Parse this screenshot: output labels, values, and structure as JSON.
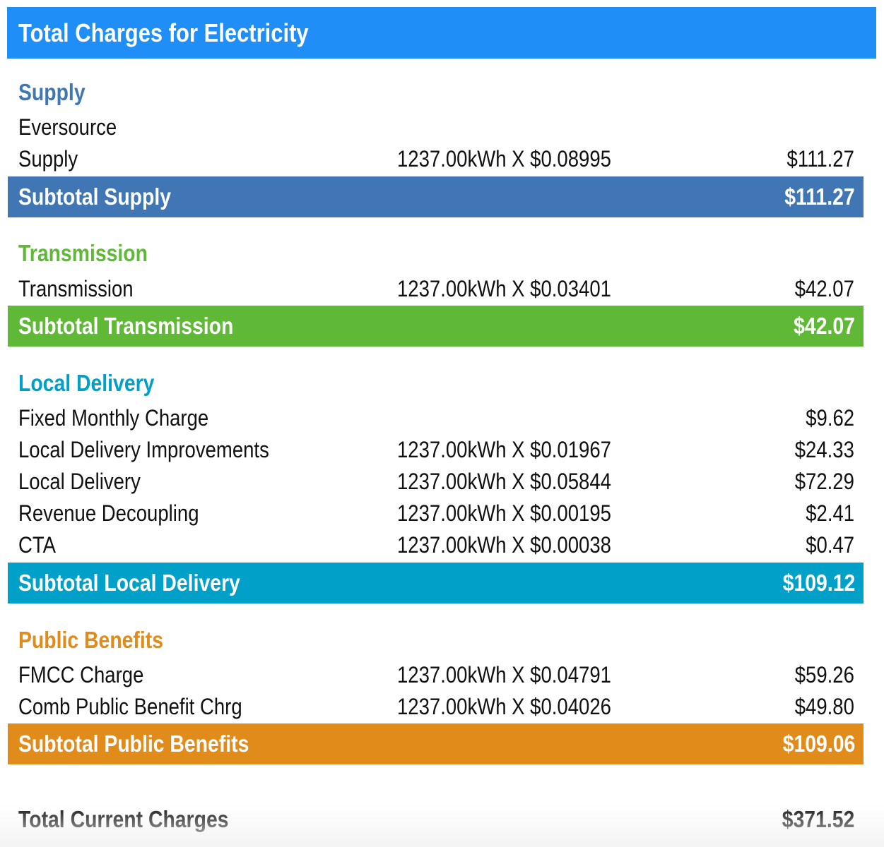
{
  "header": {
    "title": "Total Charges for Electricity"
  },
  "colors": {
    "header": "#1f8ff7",
    "supply": "#3f76b3",
    "transmission": "#60b837",
    "local_delivery": "#00a0c8",
    "public_benefits": "#e08b1a"
  },
  "supply": {
    "title": "Supply",
    "provider": "Eversource",
    "rows": [
      {
        "label": "Supply",
        "calc": "1237.00kWh X $0.08995",
        "amount": "$111.27"
      }
    ],
    "subtotal_label": "Subtotal Supply",
    "subtotal_amount": "$111.27"
  },
  "transmission": {
    "title": "Transmission",
    "rows": [
      {
        "label": "Transmission",
        "calc": "1237.00kWh X $0.03401",
        "amount": "$42.07"
      }
    ],
    "subtotal_label": "Subtotal Transmission",
    "subtotal_amount": "$42.07"
  },
  "local_delivery": {
    "title": "Local Delivery",
    "rows": [
      {
        "label": "Fixed Monthly Charge",
        "calc": "",
        "amount": "$9.62"
      },
      {
        "label": "Local Delivery Improvements",
        "calc": "1237.00kWh X $0.01967",
        "amount": "$24.33"
      },
      {
        "label": "Local Delivery",
        "calc": "1237.00kWh X $0.05844",
        "amount": "$72.29"
      },
      {
        "label": "Revenue Decoupling",
        "calc": "1237.00kWh X $0.00195",
        "amount": "$2.41"
      },
      {
        "label": "CTA",
        "calc": "1237.00kWh X $0.00038",
        "amount": "$0.47"
      }
    ],
    "subtotal_label": "Subtotal Local Delivery",
    "subtotal_amount": "$109.12"
  },
  "public_benefits": {
    "title": "Public Benefits",
    "rows": [
      {
        "label": "FMCC Charge",
        "calc": "1237.00kWh X $0.04791",
        "amount": "$59.26"
      },
      {
        "label": "Comb Public Benefit Chrg",
        "calc": "1237.00kWh X $0.04026",
        "amount": "$49.80"
      }
    ],
    "subtotal_label": "Subtotal Public Benefits",
    "subtotal_amount": "$109.06"
  },
  "total": {
    "label": "Total Current Charges",
    "amount": "$371.52"
  }
}
